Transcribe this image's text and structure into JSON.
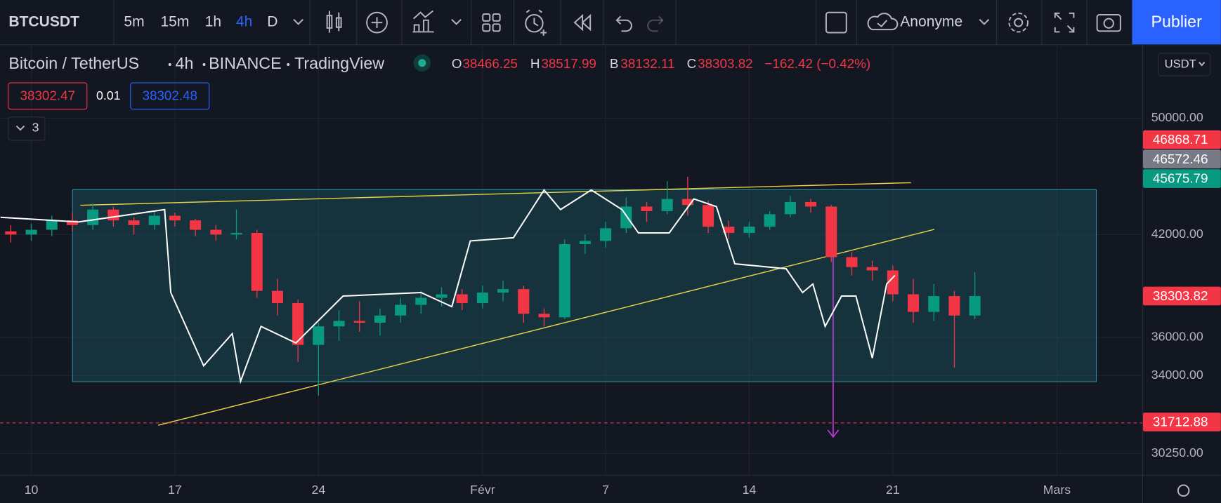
{
  "toolbar": {
    "symbol": "BTCUSDT",
    "intervals": [
      "5m",
      "15m",
      "1h",
      "4h",
      "D"
    ],
    "active_interval": "4h",
    "account": "Anonyme",
    "publish": "Publier"
  },
  "legend": {
    "symbol": "Bitcoin / TetherUS",
    "interval": "4h",
    "exchange": "BINANCE",
    "source": "TradingView",
    "ohlc": [
      {
        "label": "O",
        "value": "38466.25"
      },
      {
        "label": "H",
        "value": "38517.99"
      },
      {
        "label": "B",
        "value": "38132.11"
      },
      {
        "label": "C",
        "value": "38303.82"
      }
    ],
    "change": "−162.42 (−0.42%)"
  },
  "quote": {
    "bid": "38302.47",
    "spread": "0.01",
    "ask": "38302.48"
  },
  "indicators": "3",
  "currency": "USDT",
  "chart_data": {
    "type": "candlestick",
    "log_scale": true,
    "grid": true,
    "up_color": "#089981",
    "down_color": "#f23645",
    "x": [
      -1,
      0,
      1,
      2,
      3,
      4,
      5,
      6,
      7,
      8,
      9,
      10,
      11,
      12,
      13,
      14,
      15,
      16,
      17,
      18,
      19,
      20,
      21,
      22,
      23,
      24,
      25,
      26,
      27,
      28,
      29,
      30,
      31,
      32,
      33,
      34,
      35,
      36,
      37,
      38,
      39,
      40,
      41,
      42,
      43,
      44,
      45,
      46
    ],
    "open": [
      42200,
      42000,
      42300,
      42900,
      42600,
      43600,
      42900,
      42600,
      43200,
      42900,
      42300,
      42000,
      42100,
      38600,
      37900,
      35600,
      36600,
      36900,
      36800,
      37200,
      37800,
      38200,
      38400,
      37900,
      38500,
      38700,
      37300,
      37100,
      41400,
      41600,
      42400,
      43800,
      43500,
      44300,
      43900,
      42500,
      42100,
      42500,
      43300,
      44100,
      43800,
      40600,
      40000,
      39800,
      38400,
      37400,
      38300,
      37200
    ],
    "high": [
      42600,
      42700,
      43200,
      43400,
      44000,
      43800,
      43100,
      43500,
      43400,
      43000,
      42600,
      43600,
      42300,
      39300,
      38100,
      36800,
      37500,
      38000,
      37600,
      38200,
      38600,
      38800,
      38700,
      38900,
      39200,
      38900,
      37600,
      41700,
      42000,
      42800,
      44400,
      44100,
      45500,
      45800,
      44200,
      42900,
      42800,
      43500,
      44500,
      44300,
      43900,
      40900,
      40400,
      40100,
      39300,
      39000,
      38600,
      39700
    ],
    "low": [
      41500,
      41600,
      41900,
      42200,
      42300,
      42500,
      42000,
      42300,
      42500,
      41900,
      41600,
      41700,
      38200,
      37200,
      34700,
      33000,
      35800,
      36300,
      36100,
      36800,
      37300,
      37700,
      37500,
      37600,
      38000,
      36800,
      36600,
      37000,
      40800,
      41200,
      42100,
      42800,
      43300,
      43200,
      42100,
      41700,
      41800,
      42300,
      43100,
      43400,
      40300,
      39500,
      39200,
      38000,
      36800,
      36900,
      34400,
      37000
    ],
    "close": [
      42000,
      42300,
      42900,
      42600,
      43600,
      42900,
      42600,
      43200,
      42900,
      42300,
      42000,
      42100,
      38600,
      37900,
      35600,
      36600,
      36900,
      36800,
      37200,
      37800,
      38200,
      38400,
      37900,
      38500,
      38700,
      37300,
      37100,
      41400,
      41600,
      42400,
      43800,
      43500,
      44300,
      43900,
      42500,
      42100,
      42500,
      43300,
      44100,
      43800,
      40600,
      40000,
      39800,
      38400,
      37400,
      38300,
      37200,
      38300
    ],
    "lines": [
      {
        "color": "#ffffff",
        "x": [
          -1.5,
          2.3,
          6.5,
          6.8,
          8.4,
          9.8,
          10.2,
          11.2,
          12.9,
          15.2,
          19.0,
          20.5,
          21.4,
          23.5,
          25.0,
          25.8,
          27.3,
          28.8,
          29.6,
          31.1,
          32.3,
          33.4,
          34.3,
          36.8,
          37.6,
          38.1,
          38.7,
          39.5,
          40.2,
          41.0,
          41.7,
          42.1
        ],
        "values": [
          43100,
          42800,
          43600,
          38500,
          34500,
          36200,
          33700,
          36600,
          35700,
          38300,
          38500,
          37700,
          41600,
          41800,
          44900,
          43600,
          44900,
          43600,
          42100,
          42100,
          44300,
          43800,
          40200,
          39900,
          38500,
          39000,
          36600,
          38300,
          38300,
          34900,
          39000,
          39500
        ]
      }
    ],
    "price_labels": [
      {
        "value": 46868.71,
        "color": "#f23645"
      },
      {
        "value": 46572.46,
        "color": "#787b86"
      },
      {
        "value": 45675.79,
        "color": "#089981"
      },
      {
        "value": 38303.82,
        "color": "#f23645"
      },
      {
        "value": 31712.88,
        "color": "#f23645"
      }
    ],
    "xlim": [
      -1.52,
      54.16
    ],
    "xticks": [
      {
        "value": 0,
        "label": "10"
      },
      {
        "value": 7,
        "label": "17"
      },
      {
        "value": 14,
        "label": "24"
      },
      {
        "value": 22,
        "label": "Févr"
      },
      {
        "value": 28,
        "label": "7"
      },
      {
        "value": 35,
        "label": "14"
      },
      {
        "value": 42,
        "label": "21"
      },
      {
        "value": 50,
        "label": "Mars"
      }
    ],
    "ylim": [
      29290,
      55790
    ],
    "yticks": [
      {
        "value": 30250,
        "label": "30250.00"
      },
      {
        "value": 34000,
        "label": "34000.00"
      },
      {
        "value": 36000,
        "label": "36000.00"
      },
      {
        "value": 42000,
        "label": "42000.00"
      },
      {
        "value": 50000,
        "label": "50000.00"
      }
    ]
  }
}
